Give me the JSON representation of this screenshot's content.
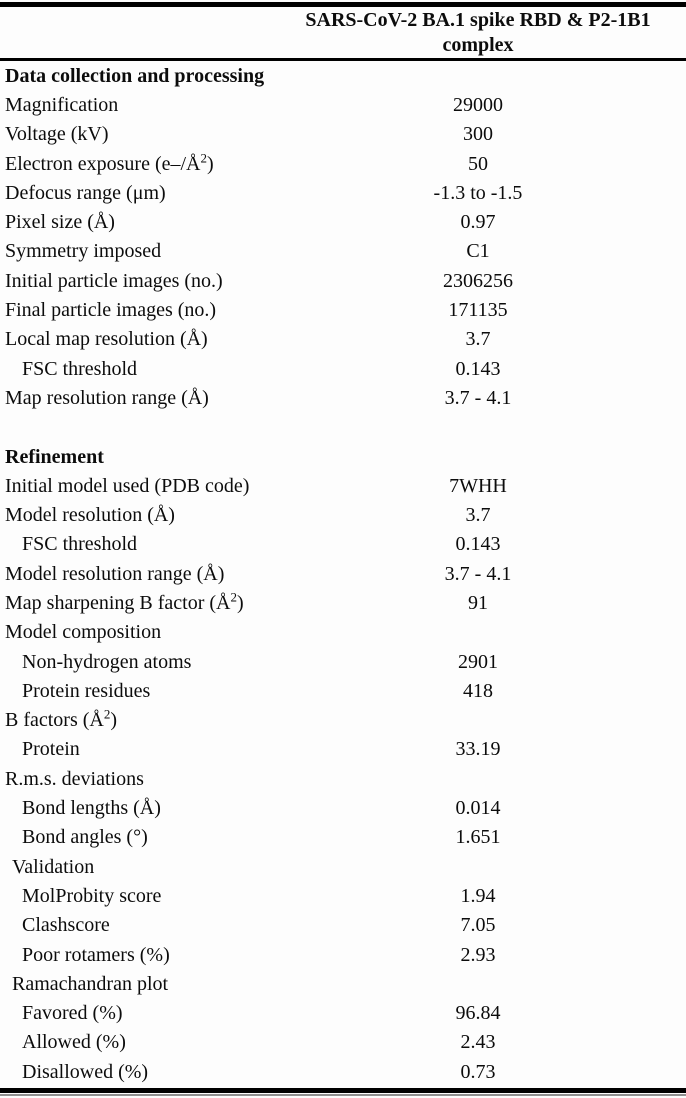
{
  "table": {
    "column_header_line1": "SARS-CoV-2 BA.1 spike RBD & P2-1B1",
    "column_header_line2": "complex",
    "column_header_full": "SARS-CoV-2 BA.1 spike RBD & P2-1B1 complex",
    "colors": {
      "text": "#0c0c0c",
      "rule": "#000000"
    },
    "sections": [
      {
        "header": "Data collection and processing",
        "rows": [
          {
            "label": "Magnification",
            "sup": "",
            "label_after": "",
            "value": "29000",
            "indent": 0
          },
          {
            "label": "Voltage (kV)",
            "sup": "",
            "label_after": "",
            "value": "300",
            "indent": 0
          },
          {
            "label": "Electron exposure (e–/Å",
            "sup": "2",
            "label_after": ")",
            "value": "50",
            "indent": 0
          },
          {
            "label": "Defocus range (μm)",
            "sup": "",
            "label_after": "",
            "value": "-1.3 to -1.5",
            "indent": 0
          },
          {
            "label": "Pixel size (Å)",
            "sup": "",
            "label_after": "",
            "value": "0.97",
            "indent": 0
          },
          {
            "label": "Symmetry imposed",
            "sup": "",
            "label_after": "",
            "value": "C1",
            "indent": 0
          },
          {
            "label": "Initial particle images (no.)",
            "sup": "",
            "label_after": "",
            "value": "2306256",
            "indent": 0
          },
          {
            "label": "Final particle images (no.)",
            "sup": "",
            "label_after": "",
            "value": "171135",
            "indent": 0
          },
          {
            "label": "Local map resolution (Å)",
            "sup": "",
            "label_after": "",
            "value": "3.7",
            "indent": 0
          },
          {
            "label": "FSC threshold",
            "sup": "",
            "label_after": "",
            "value": "0.143",
            "indent": 2
          },
          {
            "label": "Map resolution range (Å)",
            "sup": "",
            "label_after": "",
            "value": "3.7 - 4.1",
            "indent": 0
          }
        ]
      },
      {
        "header": "Refinement",
        "rows": [
          {
            "label": "Initial model used (PDB code)",
            "sup": "",
            "label_after": "",
            "value": "7WHH",
            "indent": 0
          },
          {
            "label": "Model resolution (Å)",
            "sup": "",
            "label_after": "",
            "value": "3.7",
            "indent": 0
          },
          {
            "label": "FSC threshold",
            "sup": "",
            "label_after": "",
            "value": "0.143",
            "indent": 2
          },
          {
            "label": "Model resolution range (Å)",
            "sup": "",
            "label_after": "",
            "value": "3.7 - 4.1",
            "indent": 0
          },
          {
            "label": "Map sharpening B factor (Å",
            "sup": "2",
            "label_after": ")",
            "value": "91",
            "indent": 0
          },
          {
            "label": "Model composition",
            "sup": "",
            "label_after": "",
            "value": "",
            "indent": 0
          },
          {
            "label": "Non-hydrogen atoms",
            "sup": "",
            "label_after": "",
            "value": "2901",
            "indent": 2
          },
          {
            "label": "Protein residues",
            "sup": "",
            "label_after": "",
            "value": "418",
            "indent": 2
          },
          {
            "label": "B factors (Å",
            "sup": "2",
            "label_after": ")",
            "value": "",
            "indent": 0
          },
          {
            "label": "Protein",
            "sup": "",
            "label_after": "",
            "value": "33.19",
            "indent": 2
          },
          {
            "label": "R.m.s. deviations",
            "sup": "",
            "label_after": "",
            "value": "",
            "indent": 0
          },
          {
            "label": "Bond lengths (Å)",
            "sup": "",
            "label_after": "",
            "value": "0.014",
            "indent": 2
          },
          {
            "label": "Bond angles (°)",
            "sup": "",
            "label_after": "",
            "value": "1.651",
            "indent": 2
          },
          {
            "label": "Validation",
            "sup": "",
            "label_after": "",
            "value": "",
            "indent": 1
          },
          {
            "label": "MolProbity score",
            "sup": "",
            "label_after": "",
            "value": "1.94",
            "indent": 2
          },
          {
            "label": "Clashscore",
            "sup": "",
            "label_after": "",
            "value": "7.05",
            "indent": 2
          },
          {
            "label": "Poor rotamers (%)",
            "sup": "",
            "label_after": "",
            "value": "2.93",
            "indent": 2
          },
          {
            "label": "Ramachandran plot",
            "sup": "",
            "label_after": "",
            "value": "",
            "indent": 1
          },
          {
            "label": "Favored (%)",
            "sup": "",
            "label_after": "",
            "value": "96.84",
            "indent": 2
          },
          {
            "label": "Allowed (%)",
            "sup": "",
            "label_after": "",
            "value": "2.43",
            "indent": 2
          },
          {
            "label": "Disallowed (%)",
            "sup": "",
            "label_after": "",
            "value": "0.73",
            "indent": 2
          }
        ]
      }
    ]
  }
}
